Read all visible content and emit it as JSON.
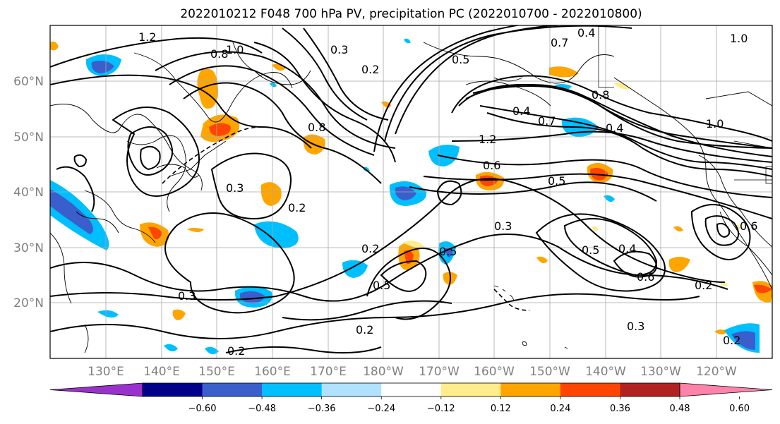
{
  "title": "2022010212 F048 700 hPa PV, precipitation PC (2022010700 - 2022010800)",
  "lat_labels": [
    "60°N",
    "50°N",
    "40°N",
    "30°N",
    "20°N"
  ],
  "lon_labels": [
    "130°E",
    "140°E",
    "150°E",
    "160°E",
    "170°E",
    "180°W",
    "170°W",
    "160°W",
    "150°W",
    "140°W",
    "130°W",
    "120°W"
  ],
  "colorbar": {
    "ticks": [
      "−0.60",
      "−0.48",
      "−0.36",
      "−0.24",
      "−0.12",
      "0.12",
      "0.24",
      "0.36",
      "0.48",
      "0.60"
    ],
    "colors": [
      "#9932CC",
      "#00008B",
      "#3A5FCD",
      "#00BFFF",
      "#B0E2FF",
      "#FFFFFF",
      "#FFEC8B",
      "#FFA500",
      "#FF4500",
      "#B22222",
      "#FF82AB"
    ]
  },
  "contour_labels": [
    "1.2",
    "0.8",
    "1.0",
    "0.3",
    "0.2",
    "0.4",
    "0.7",
    "0.5",
    "1.2",
    "0.4",
    "0.7",
    "0.4",
    "0.8",
    "0.6",
    "0.5",
    "0.3",
    "0.2",
    "0.4",
    "0.5",
    "0.6",
    "0.2",
    "0.3",
    "0.2",
    "0.2",
    "0.5",
    "0.3",
    "0.2",
    "1.0",
    "0.5",
    "0.6",
    "0.3",
    "0.2",
    "0.8",
    "1.0"
  ]
}
